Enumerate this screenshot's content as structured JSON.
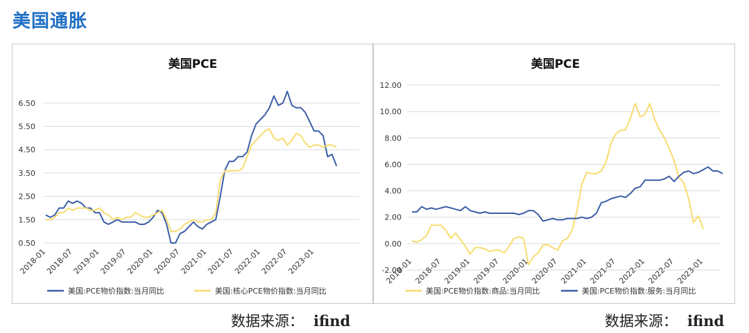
{
  "page": {
    "title": "美国通胀",
    "source_label": "数据来源：",
    "source_value": "ifind"
  },
  "chart_data": [
    {
      "type": "line",
      "title": "美国PCE",
      "x_ticks": [
        "2018-01",
        "2018-07",
        "2019-01",
        "2019-07",
        "2020-01",
        "2020-07",
        "2021-01",
        "2021-07",
        "2022-01",
        "2022-07",
        "2023-01"
      ],
      "x_start": "2018-01",
      "y_ticks": [
        "0.50",
        "1.50",
        "2.50",
        "3.50",
        "4.50",
        "5.50",
        "6.50"
      ],
      "ylim": [
        0.5,
        7.0
      ],
      "grid": true,
      "legend_position": "bottom",
      "series": [
        {
          "name": "美国:PCE物价指数:当月同比",
          "color": "#3b5ea6",
          "values": [
            1.7,
            1.6,
            1.7,
            2.0,
            2.0,
            2.3,
            2.2,
            2.3,
            2.2,
            2.0,
            2.0,
            1.8,
            1.8,
            1.4,
            1.3,
            1.4,
            1.5,
            1.4,
            1.4,
            1.4,
            1.4,
            1.3,
            1.3,
            1.4,
            1.6,
            1.9,
            1.8,
            1.3,
            0.5,
            0.5,
            0.9,
            1.0,
            1.2,
            1.4,
            1.2,
            1.1,
            1.3,
            1.4,
            1.5,
            2.5,
            3.6,
            4.0,
            4.0,
            4.2,
            4.2,
            4.4,
            5.1,
            5.6,
            5.8,
            6.0,
            6.3,
            6.8,
            6.4,
            6.5,
            7.0,
            6.4,
            6.3,
            6.3,
            6.1,
            5.7,
            5.3,
            5.3,
            5.1,
            4.2,
            4.3,
            3.8
          ]
        },
        {
          "name": "美国:核心PCE物价指数:当月同比",
          "color": "#f7dc6f",
          "values": [
            1.5,
            1.5,
            1.6,
            1.8,
            1.8,
            2.0,
            1.9,
            2.0,
            2.0,
            2.0,
            1.9,
            1.9,
            2.0,
            1.8,
            1.7,
            1.5,
            1.6,
            1.5,
            1.6,
            1.6,
            1.8,
            1.7,
            1.6,
            1.6,
            1.7,
            1.8,
            1.9,
            1.5,
            1.0,
            1.0,
            1.1,
            1.3,
            1.4,
            1.5,
            1.4,
            1.4,
            1.5,
            1.5,
            1.8,
            3.2,
            3.6,
            3.6,
            3.6,
            3.6,
            3.7,
            4.2,
            4.7,
            4.9,
            5.1,
            5.3,
            5.4,
            5.0,
            4.9,
            5.0,
            4.7,
            4.9,
            5.2,
            5.1,
            4.8,
            4.6,
            4.7,
            4.7,
            4.6,
            4.7,
            4.7,
            4.6
          ]
        }
      ]
    },
    {
      "type": "line",
      "title": "美国PCE",
      "x_ticks": [
        "2018-01",
        "2018-07",
        "2019-01",
        "2019-07",
        "2020-01",
        "2020-07",
        "2021-01",
        "2021-07",
        "2022-01",
        "2022-07",
        "2023-01"
      ],
      "x_start": "2018-01",
      "y_ticks": [
        "-2.00",
        "0.00",
        "2.00",
        "4.00",
        "6.00",
        "8.00",
        "10.00",
        "12.00"
      ],
      "ylim": [
        -2.0,
        12.0
      ],
      "grid": true,
      "legend_position": "bottom",
      "series": [
        {
          "name": "美国:PCE物价指数:商品:当月同比",
          "color": "#f7dc6f",
          "values": [
            0.2,
            0.1,
            0.3,
            0.6,
            1.4,
            1.4,
            1.4,
            1.0,
            0.4,
            0.8,
            0.3,
            -0.2,
            -0.8,
            -0.3,
            -0.3,
            -0.4,
            -0.6,
            -0.5,
            -0.5,
            -0.7,
            -0.2,
            0.4,
            0.5,
            0.4,
            -1.6,
            -1.0,
            -0.7,
            -0.1,
            -0.1,
            -0.3,
            -0.5,
            0.2,
            0.4,
            1.0,
            2.5,
            4.5,
            5.4,
            5.3,
            5.3,
            5.5,
            6.2,
            7.6,
            8.3,
            8.6,
            8.6,
            9.5,
            10.6,
            9.6,
            9.8,
            10.6,
            9.4,
            8.6,
            8.0,
            7.2,
            6.3,
            5.0,
            4.6,
            3.4,
            1.6,
            2.1,
            1.1
          ]
        },
        {
          "name": "美国:PCE物价指数:服务:当月同比",
          "color": "#3b5ea6",
          "values": [
            2.4,
            2.4,
            2.8,
            2.6,
            2.7,
            2.6,
            2.7,
            2.8,
            2.7,
            2.6,
            2.5,
            2.8,
            2.5,
            2.4,
            2.3,
            2.4,
            2.3,
            2.3,
            2.3,
            2.3,
            2.3,
            2.3,
            2.2,
            2.3,
            2.5,
            2.5,
            2.2,
            1.7,
            1.8,
            1.9,
            1.8,
            1.8,
            1.9,
            1.9,
            1.9,
            2.0,
            1.9,
            2.0,
            2.3,
            3.1,
            3.2,
            3.4,
            3.5,
            3.6,
            3.5,
            3.8,
            4.2,
            4.3,
            4.8,
            4.8,
            4.8,
            4.8,
            4.9,
            5.1,
            4.7,
            5.1,
            5.4,
            5.5,
            5.3,
            5.4,
            5.6,
            5.8,
            5.5,
            5.5,
            5.3
          ]
        }
      ]
    }
  ]
}
